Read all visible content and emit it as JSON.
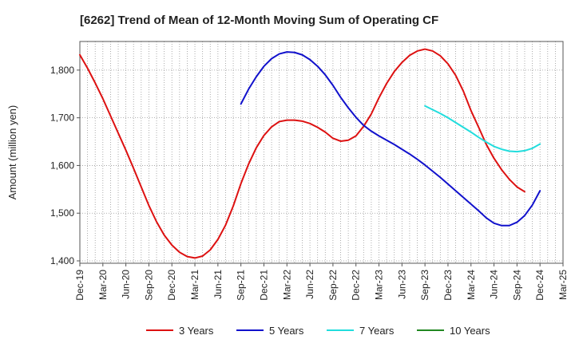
{
  "chart_data": {
    "type": "line",
    "title": "[6262]  Trend of Mean of 12-Month Moving Sum of Operating CF",
    "xlabel": "",
    "ylabel": "Amount (million yen)",
    "ylim": [
      1395,
      1860
    ],
    "yticks": [
      1400,
      1500,
      1600,
      1700,
      1800
    ],
    "ytick_labels": [
      "1,400",
      "1,500",
      "1,600",
      "1,700",
      "1,800"
    ],
    "xticks": [
      "Dec-19",
      "Mar-20",
      "Jun-20",
      "Sep-20",
      "Dec-20",
      "Mar-21",
      "Jun-21",
      "Sep-21",
      "Dec-21",
      "Mar-22",
      "Jun-22",
      "Sep-22",
      "Dec-22",
      "Mar-23",
      "Jun-23",
      "Sep-23",
      "Dec-23",
      "Mar-24",
      "Jun-24",
      "Sep-24",
      "Dec-24",
      "Mar-25"
    ],
    "x_start": "Dec-19",
    "x_months_total": 63,
    "grid": true,
    "legend_position": "bottom",
    "series": [
      {
        "name": "3 Years",
        "color": "#dd1111",
        "start_month": 0,
        "values": [
          1832,
          1804,
          1773,
          1740,
          1704,
          1668,
          1632,
          1594,
          1555,
          1516,
          1482,
          1454,
          1433,
          1418,
          1409,
          1406,
          1410,
          1423,
          1445,
          1475,
          1515,
          1562,
          1603,
          1637,
          1663,
          1681,
          1692,
          1695,
          1695,
          1693,
          1688,
          1680,
          1670,
          1657,
          1651,
          1653,
          1662,
          1682,
          1708,
          1742,
          1772,
          1797,
          1816,
          1831,
          1840,
          1844,
          1840,
          1830,
          1813,
          1789,
          1756,
          1715,
          1680,
          1644,
          1615,
          1591,
          1571,
          1555,
          1545
        ]
      },
      {
        "name": "5 Years",
        "color": "#1111cc",
        "start_month": 21,
        "values": [
          1729,
          1760,
          1786,
          1808,
          1824,
          1834,
          1838,
          1837,
          1832,
          1822,
          1808,
          1790,
          1768,
          1743,
          1721,
          1701,
          1684,
          1672,
          1662,
          1653,
          1644,
          1634,
          1624,
          1613,
          1601,
          1588,
          1575,
          1561,
          1547,
          1533,
          1519,
          1505,
          1490,
          1479,
          1474,
          1474,
          1481,
          1495,
          1517,
          1547
        ]
      },
      {
        "name": "7 Years",
        "color": "#22dddd",
        "start_month": 45,
        "values": [
          1725,
          1717,
          1709,
          1700,
          1690,
          1680,
          1670,
          1659,
          1649,
          1640,
          1634,
          1630,
          1629,
          1631,
          1636,
          1645
        ]
      },
      {
        "name": "10 Years",
        "color": "#228822",
        "start_month": 0,
        "values": []
      }
    ]
  }
}
